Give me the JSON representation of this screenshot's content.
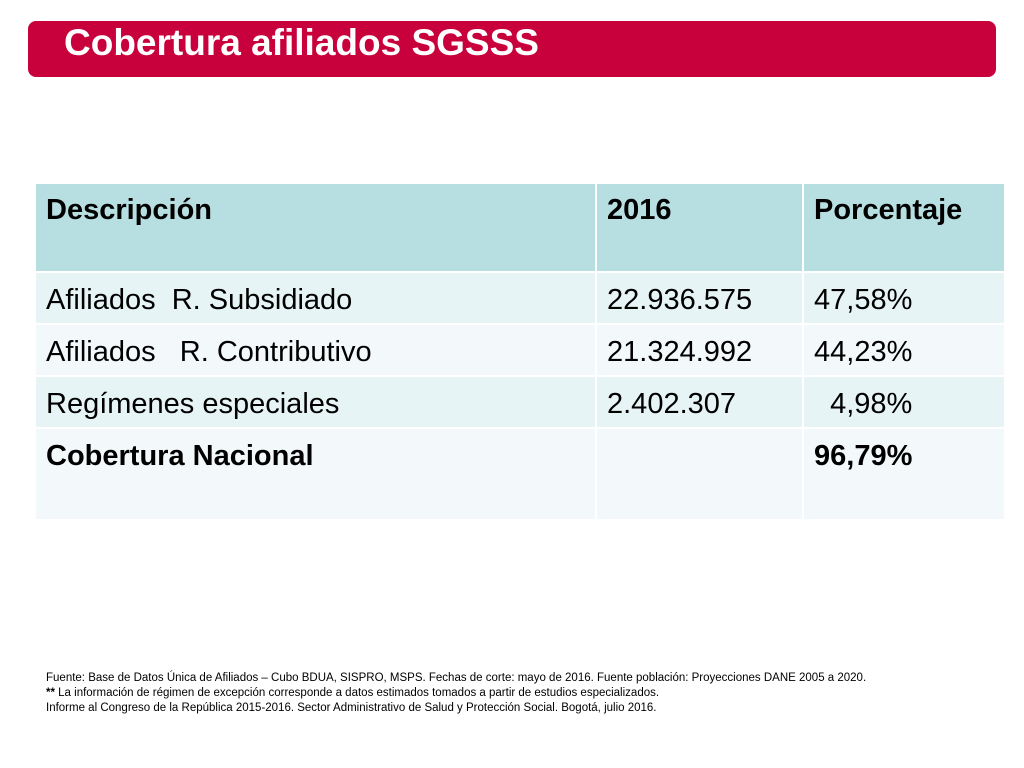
{
  "slide": {
    "title": "Cobertura afiliados SGSSS"
  },
  "table": {
    "headers": [
      "Descripción",
      "2016",
      "Porcentaje"
    ],
    "rows": [
      {
        "descripcion": "Afiliados  R. Subsidiado",
        "valor_2016": "22.936.575",
        "porcentaje": "47,58%"
      },
      {
        "descripcion": "Afiliados   R. Contributivo",
        "valor_2016": "21.324.992",
        "porcentaje": "44,23%"
      },
      {
        "descripcion": "Regímenes especiales",
        "valor_2016": "2.402.307",
        "porcentaje": "  4,98%"
      },
      {
        "descripcion": "Cobertura Nacional",
        "valor_2016": "",
        "porcentaje": "96,79%"
      }
    ]
  },
  "footnotes": {
    "line1": "Fuente: Base de Datos Única de Afiliados – Cubo BDUA, SISPRO, MSPS. Fechas de corte: mayo de 2016.  Fuente población: Proyecciones DANE 2005 a 2020.",
    "line2_mark": "**",
    "line2_text": " La información de régimen de excepción corresponde a datos estimados tomados a partir de estudios especializados.",
    "line3": "Informe al Congreso de la República 2015-2016. Sector Administrativo de Salud y Protección Social. Bogotá, julio 2016."
  },
  "colors": {
    "title_bar": "#c8003c",
    "header_cells": "#b7dfe2",
    "row_band_a": "#e7f4f5",
    "row_band_b": "#f3f9fb"
  }
}
